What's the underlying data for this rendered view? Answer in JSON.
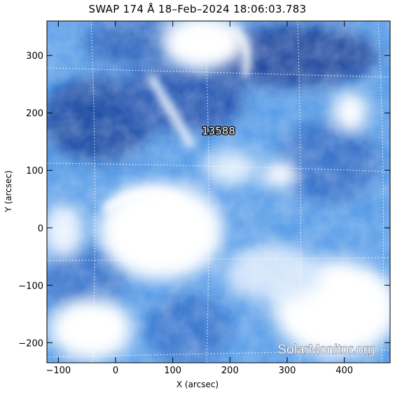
{
  "title": "SWAP 174 Å 18–Feb–2024 18:06:03.783",
  "x_axis": {
    "label": "X (arcsec)",
    "ticks": [
      "−100",
      "0",
      "100",
      "200",
      "300",
      "400"
    ],
    "range": [
      -120,
      480
    ]
  },
  "y_axis": {
    "label": "Y (arcsec)",
    "ticks": [
      "300",
      "200",
      "100",
      "0",
      "−100",
      "−200"
    ],
    "range": [
      -235,
      360
    ]
  },
  "region_label": "13588",
  "watermark": "SolarMonitor.org",
  "colors": {
    "dark": "#0b3c9a",
    "mid": "#2f7ad8",
    "light": "#9cc7f4",
    "bright": "#ffffff",
    "background": "#ffffff"
  },
  "grid": true
}
